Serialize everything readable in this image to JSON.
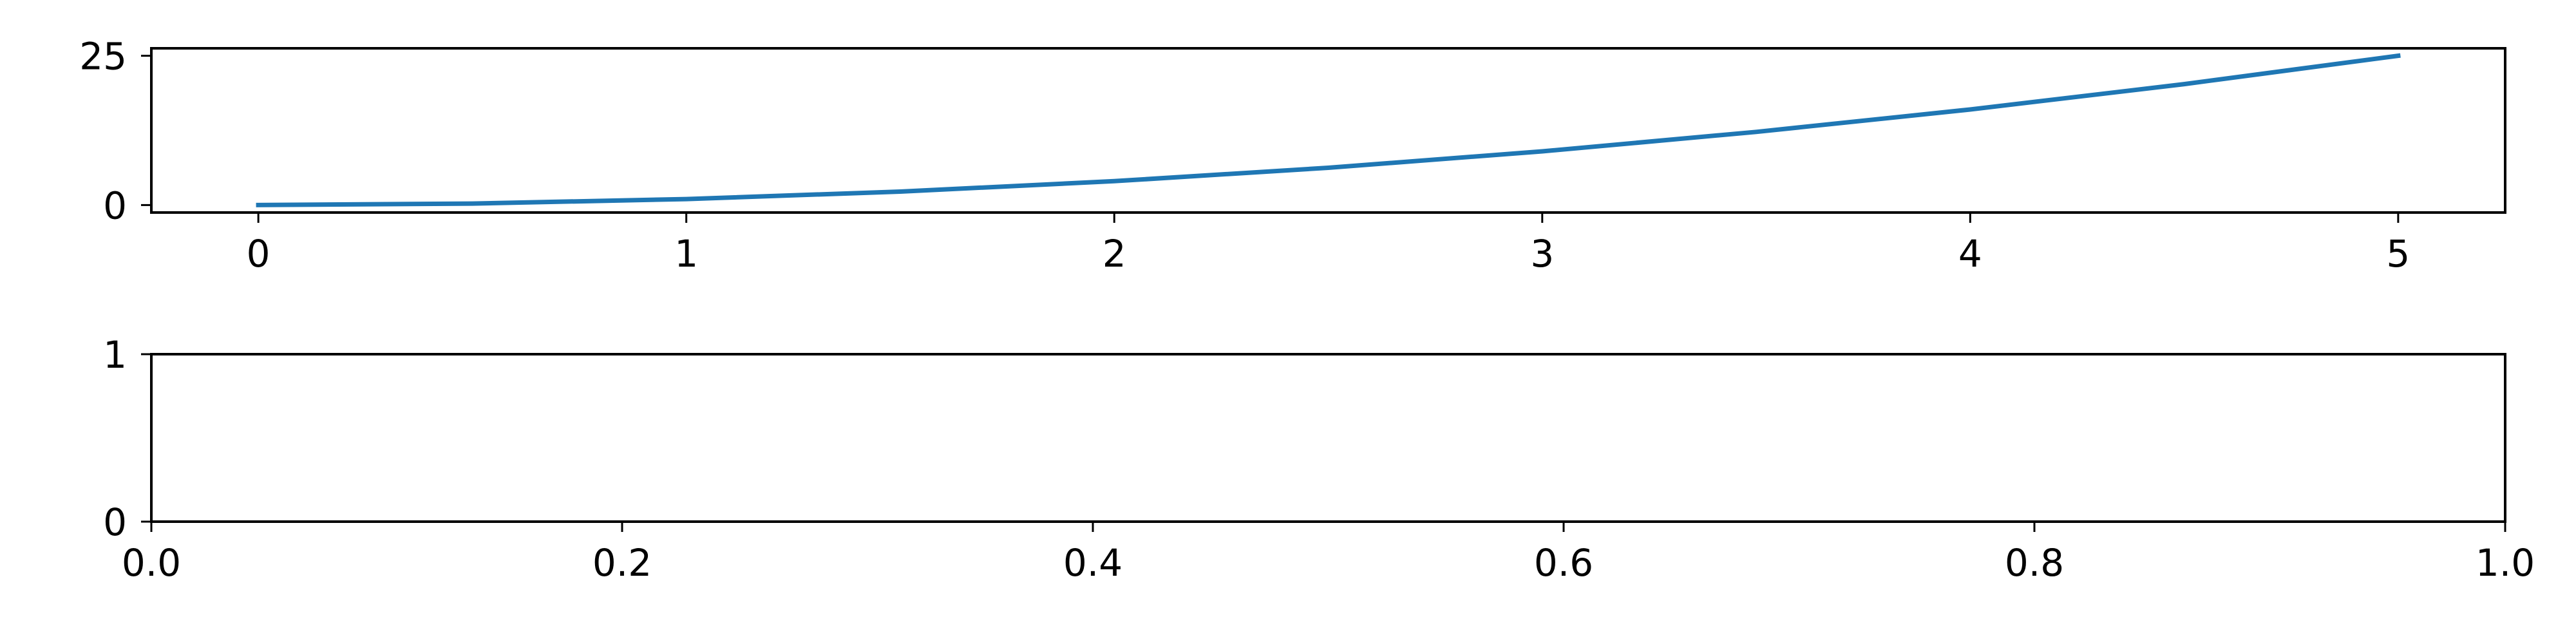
{
  "chart_data": [
    {
      "type": "line",
      "x": [
        0,
        0.5,
        1,
        1.5,
        2,
        2.5,
        3,
        3.5,
        4,
        4.5,
        5
      ],
      "series": [
        {
          "values": [
            0,
            0.25,
            1,
            2.25,
            4,
            6.25,
            9,
            12.25,
            16,
            20.25,
            25
          ],
          "color": "#1f77b4"
        }
      ],
      "xlim": [
        -0.25,
        5.25
      ],
      "ylim": [
        -1.25,
        26.25
      ],
      "xticks": [
        0,
        1,
        2,
        3,
        4,
        5
      ],
      "xtick_labels": [
        "0",
        "1",
        "2",
        "3",
        "4",
        "5"
      ],
      "yticks": [
        0,
        25
      ],
      "ytick_labels": [
        "0",
        "25"
      ],
      "grid": false
    },
    {
      "type": "line",
      "series": [],
      "xlim": [
        0,
        1
      ],
      "ylim": [
        0,
        1
      ],
      "xticks": [
        0,
        0.2,
        0.4,
        0.6,
        0.8,
        1.0
      ],
      "xtick_labels": [
        "0.0",
        "0.2",
        "0.4",
        "0.6",
        "0.8",
        "1.0"
      ],
      "yticks": [
        0,
        1
      ],
      "ytick_labels": [
        "0",
        "1"
      ],
      "grid": false
    }
  ]
}
